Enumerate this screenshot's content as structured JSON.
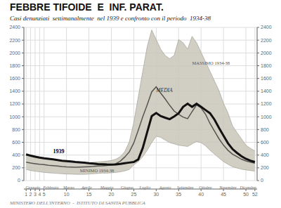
{
  "chart_data": {
    "type": "line",
    "title": "FEBBRE TIFOIDE  E  INF. PARAT.",
    "subtitle": "Casi denunziati  settimanalmente  nel 1939 e confronto con il periodo  1934-38",
    "footer": "MINISTERO DELL'INTERNO  -  ISTITUTO DI SANITA PUBBLICA",
    "x": [
      1,
      2,
      3,
      4,
      5,
      6,
      7,
      8,
      9,
      10,
      11,
      12,
      13,
      14,
      15,
      16,
      17,
      18,
      19,
      20,
      21,
      22,
      23,
      24,
      25,
      26,
      27,
      28,
      29,
      30,
      31,
      32,
      33,
      34,
      35,
      36,
      37,
      38,
      39,
      40,
      41,
      42,
      43,
      44,
      45,
      46,
      47,
      48,
      49,
      50,
      51,
      52
    ],
    "xlim": [
      0.5,
      52.5
    ],
    "xticks": [
      1,
      2,
      3,
      4,
      5,
      10,
      15,
      20,
      25,
      30,
      35,
      40,
      45,
      50,
      52
    ],
    "ylim": [
      0,
      2400
    ],
    "yticks": [
      0,
      200,
      400,
      600,
      800,
      1000,
      1200,
      1400,
      1600,
      1800,
      2000,
      2200,
      2400
    ],
    "y2lim": [
      0,
      2400
    ],
    "y2ticks": [
      0,
      200,
      400,
      600,
      800,
      1000,
      1200,
      1400,
      1600,
      1800,
      2000,
      2200,
      2400
    ],
    "grid": true,
    "band": {
      "lower": "MINIMO 1934-38",
      "upper": "MASSIMO 1934-38",
      "color": "#c9c5b8"
    },
    "series": [
      {
        "name": "MASSIMO 1934-38",
        "color": "#aaa89e",
        "values": [
          420,
          405,
          385,
          370,
          355,
          340,
          325,
          312,
          302,
          288,
          282,
          278,
          272,
          275,
          280,
          286,
          292,
          298,
          305,
          315,
          335,
          375,
          455,
          605,
          910,
          1310,
          1710,
          2100,
          2360,
          2210,
          2060,
          1960,
          1910,
          1960,
          2210,
          2160,
          2060,
          2260,
          2160,
          2010,
          1860,
          1710,
          1560,
          1410,
          1210,
          1060,
          860,
          755,
          655,
          555,
          505,
          465
        ]
      },
      {
        "name": "MINIMO 1934-38",
        "color": "#aaa89e",
        "values": [
          175,
          158,
          148,
          138,
          128,
          122,
          118,
          112,
          108,
          103,
          102,
          98,
          98,
          98,
          102,
          108,
          112,
          118,
          118,
          122,
          128,
          138,
          152,
          175,
          245,
          298,
          375,
          475,
          595,
          695,
          678,
          635,
          595,
          575,
          555,
          545,
          535,
          575,
          615,
          595,
          545,
          475,
          415,
          355,
          298,
          255,
          218,
          198,
          178,
          168,
          158,
          148
        ]
      },
      {
        "name": "MEDIA",
        "color": "#555550",
        "values": [
          290,
          275,
          265,
          255,
          250,
          240,
          235,
          228,
          220,
          215,
          212,
          210,
          212,
          215,
          218,
          222,
          228,
          232,
          238,
          248,
          265,
          305,
          370,
          450,
          590,
          790,
          1000,
          1190,
          1390,
          1470,
          1370,
          1280,
          1180,
          1090,
          1040,
          995,
          970,
          1080,
          1185,
          1140,
          1040,
          895,
          775,
          655,
          555,
          475,
          415,
          375,
          335,
          308,
          288,
          272
        ]
      },
      {
        "name": "1939",
        "color": "#111111",
        "values": [
          410,
          390,
          375,
          360,
          350,
          342,
          332,
          322,
          312,
          306,
          300,
          292,
          286,
          280,
          272,
          266,
          260,
          256,
          252,
          250,
          254,
          262,
          272,
          282,
          292,
          332,
          510,
          760,
          1010,
          1060,
          1010,
          985,
          962,
          1005,
          1055,
          1155,
          1205,
          1155,
          1205,
          1155,
          1105,
          1055,
          955,
          825,
          705,
          585,
          495,
          435,
          382,
          342,
          312,
          292
        ]
      }
    ],
    "annotations": [
      {
        "text": "1939",
        "x": 7,
        "y": 430
      },
      {
        "text": "MEDIA",
        "x": 30,
        "y": 1390
      },
      {
        "text": "MASSIMO 1934-38",
        "x": 38,
        "y": 1820
      },
      {
        "text": "MINIMO 1934-38",
        "x": 13,
        "y": 128
      }
    ],
    "months": {
      "x": [
        2.5,
        6.5,
        10.5,
        14.5,
        19.0,
        23.5,
        27.5,
        32.0,
        36.5,
        41.0,
        46.0,
        50.5
      ],
      "labels": [
        "Gennaio",
        "Febbraio",
        "Marzo",
        "Aprile",
        "Maggio",
        "Giugno",
        "Luglio",
        "Agosto",
        "Settembre",
        "Ottobre",
        "Novembre",
        "Dicembre"
      ]
    }
  }
}
